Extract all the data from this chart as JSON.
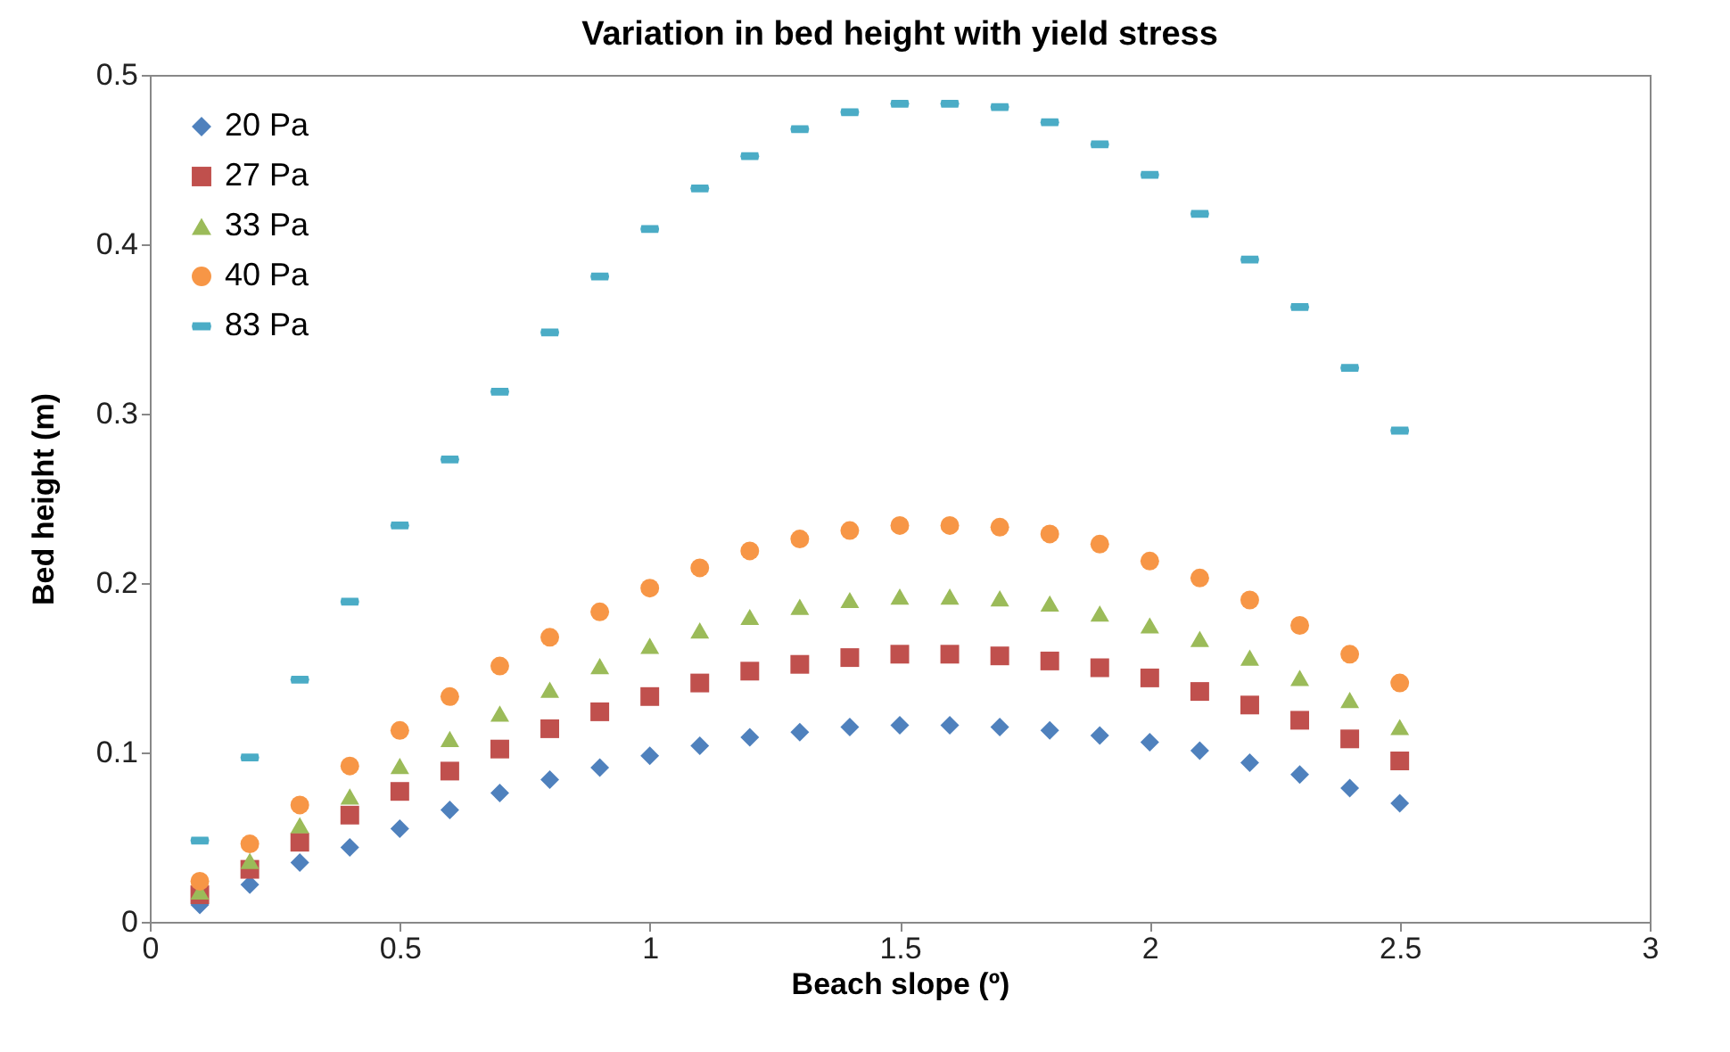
{
  "chart_data": {
    "type": "scatter",
    "title": "Variation in bed height with yield stress",
    "xlabel": "Beach slope (º)",
    "ylabel": "Bed height (m)",
    "x": [
      0.1,
      0.2,
      0.3,
      0.4,
      0.5,
      0.6,
      0.7,
      0.8,
      0.9,
      1.0,
      1.1,
      1.2,
      1.3,
      1.4,
      1.5,
      1.6,
      1.7,
      1.8,
      1.9,
      2.0,
      2.1,
      2.2,
      2.3,
      2.4,
      2.5
    ],
    "xlim": [
      0,
      3
    ],
    "xticks": [
      0,
      0.5,
      1,
      1.5,
      2,
      2.5,
      3
    ],
    "ylim": [
      0,
      0.5
    ],
    "yticks": [
      0,
      0.1,
      0.2,
      0.3,
      0.4,
      0.5
    ],
    "grid": false,
    "legend": "top left",
    "series": [
      {
        "name": "20 Pa",
        "color": "#4f81bd",
        "marker": "diamond",
        "values": [
          0.01,
          0.022,
          0.035,
          0.044,
          0.055,
          0.066,
          0.076,
          0.084,
          0.091,
          0.098,
          0.104,
          0.109,
          0.112,
          0.115,
          0.116,
          0.116,
          0.115,
          0.113,
          0.11,
          0.106,
          0.101,
          0.094,
          0.087,
          0.079,
          0.07
        ]
      },
      {
        "name": "27 Pa",
        "color": "#c0504d",
        "marker": "square",
        "values": [
          0.016,
          0.031,
          0.047,
          0.063,
          0.077,
          0.089,
          0.102,
          0.114,
          0.124,
          0.133,
          0.141,
          0.148,
          0.152,
          0.156,
          0.158,
          0.158,
          0.157,
          0.154,
          0.15,
          0.144,
          0.136,
          0.128,
          0.119,
          0.108,
          0.095
        ]
      },
      {
        "name": "33 Pa",
        "color": "#9bbb59",
        "marker": "triangle",
        "values": [
          0.018,
          0.036,
          0.057,
          0.074,
          0.092,
          0.108,
          0.123,
          0.137,
          0.151,
          0.163,
          0.172,
          0.18,
          0.186,
          0.19,
          0.192,
          0.192,
          0.191,
          0.188,
          0.182,
          0.175,
          0.167,
          0.156,
          0.144,
          0.131,
          0.115
        ]
      },
      {
        "name": "40 Pa",
        "color": "#f79646",
        "marker": "circle",
        "values": [
          0.024,
          0.046,
          0.069,
          0.092,
          0.113,
          0.133,
          0.151,
          0.168,
          0.183,
          0.197,
          0.209,
          0.219,
          0.226,
          0.231,
          0.234,
          0.234,
          0.233,
          0.229,
          0.223,
          0.213,
          0.203,
          0.19,
          0.175,
          0.158,
          0.141
        ]
      },
      {
        "name": "83 Pa",
        "color": "#4bacc6",
        "values": [
          0.048,
          0.097,
          0.143,
          0.189,
          0.234,
          0.273,
          0.313,
          0.348,
          0.381,
          0.409,
          0.433,
          0.452,
          0.468,
          0.478,
          0.483,
          0.483,
          0.481,
          0.472,
          0.459,
          0.441,
          0.418,
          0.391,
          0.363,
          0.327,
          0.29
        ]
      }
    ]
  }
}
